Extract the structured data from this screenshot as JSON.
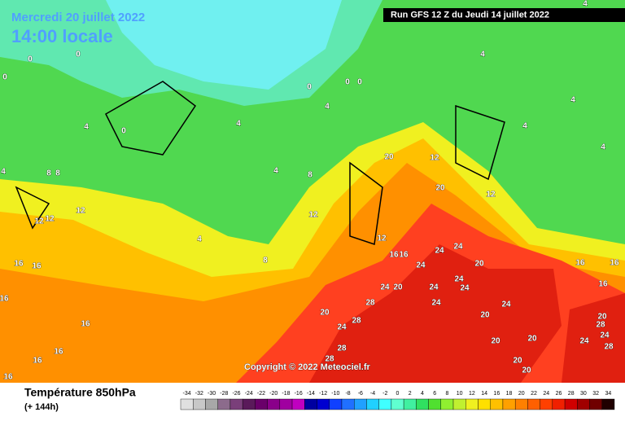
{
  "header": {
    "date": "Mercredi 20 juillet 2022",
    "time": "14:00 locale",
    "run": "Run GFS 12 Z du Jeudi 14 juillet 2022"
  },
  "copyright": "Copyright © 2022 Meteociel.fr",
  "footer": {
    "title": "Température 850hPa",
    "lead": "(+ 144h)"
  },
  "legend": {
    "labels": [
      -34,
      -32,
      -30,
      -28,
      -26,
      -24,
      -22,
      -20,
      -18,
      -16,
      -14,
      -12,
      -10,
      -8,
      -6,
      -4,
      -2,
      0,
      2,
      4,
      6,
      8,
      10,
      12,
      14,
      16,
      18,
      20,
      22,
      24,
      26,
      28,
      30,
      32,
      34
    ],
    "colors": [
      "#e0e0e0",
      "#c8c8c8",
      "#a8a8a8",
      "#8c6b8c",
      "#7a3f7a",
      "#5a1a5a",
      "#6a006a",
      "#8a008a",
      "#a000a0",
      "#c000c0",
      "#0000a0",
      "#0000d0",
      "#1040ff",
      "#2070ff",
      "#20a0ff",
      "#20d0ff",
      "#40ffff",
      "#60ffd0",
      "#40f0a0",
      "#30e060",
      "#50e030",
      "#90f030",
      "#c0f030",
      "#f0f020",
      "#ffe000",
      "#ffc000",
      "#ffa000",
      "#ff8000",
      "#ff6000",
      "#ff4000",
      "#f02000",
      "#d00000",
      "#a00000",
      "#700000",
      "#200000"
    ]
  },
  "map_labels": [
    0,
    0,
    0,
    0,
    0,
    0,
    0,
    4,
    4,
    4,
    4,
    4,
    4,
    4,
    4,
    4,
    4,
    4,
    8,
    8,
    8,
    8,
    12,
    12,
    12,
    12,
    12,
    12,
    12,
    16,
    16,
    16,
    16,
    16,
    16,
    16,
    16,
    16,
    16,
    16,
    16,
    20,
    20,
    20,
    20,
    20,
    20,
    20,
    20,
    20,
    20,
    20,
    24,
    24,
    24,
    24,
    24,
    24,
    24,
    24,
    24,
    24,
    24,
    24,
    28,
    28,
    28,
    28,
    28,
    28
  ]
}
